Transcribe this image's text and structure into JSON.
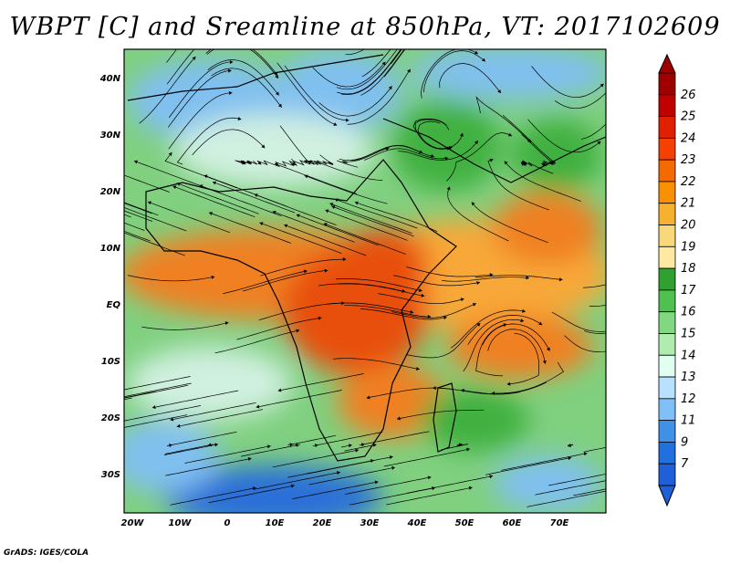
{
  "title": "WBPT [C] and Sreamline at 850hPa, VT: 2017102609",
  "footer": "GrADS: IGES/COLA",
  "axes": {
    "lat_labels": [
      "40N",
      "30N",
      "20N",
      "10N",
      "EQ",
      "10S",
      "20S",
      "30S"
    ],
    "lon_labels": [
      "20W",
      "10W",
      "0",
      "10E",
      "20E",
      "30E",
      "40E",
      "50E",
      "60E",
      "70E"
    ]
  },
  "colorbar": {
    "labels": [
      "26",
      "25",
      "24",
      "23",
      "22",
      "21",
      "20",
      "19",
      "18",
      "17",
      "16",
      "15",
      "14",
      "13",
      "12",
      "11",
      "9",
      "7"
    ],
    "colors": [
      "#9e0000",
      "#c00000",
      "#e02000",
      "#f44000",
      "#f46a00",
      "#f89000",
      "#f8b030",
      "#f8d878",
      "#ffe8a0",
      "#30a030",
      "#50c050",
      "#80d880",
      "#b0ecb0",
      "#e0fff0",
      "#b8e0ff",
      "#80c0f8",
      "#4090e8",
      "#2070e0",
      "#1f5fd8"
    ],
    "top_arrow_color": "#9e0000",
    "bottom_arrow_color": "#1f5fd8"
  },
  "map_palette": {
    "hot": "#e85010",
    "orange": "#f08020",
    "light_orange": "#f8a838",
    "yellow": "#f8d878",
    "green": "#40b040",
    "light_green": "#80d080",
    "pale": "#d0f0e0",
    "blue": "#80c0f0",
    "deep_blue": "#2a6fd8"
  }
}
